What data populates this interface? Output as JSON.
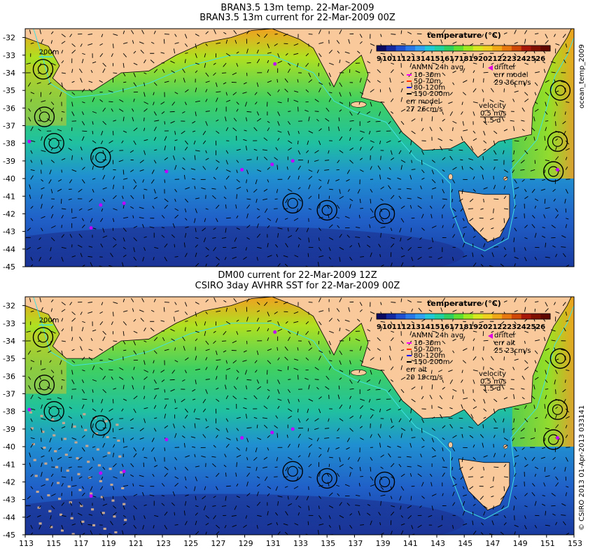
{
  "panels": [
    {
      "titles": [
        "BRAN3.5 13m temp. 22-Mar-2009",
        "BRAN3.5 13m current for 22-Mar-2009 00Z"
      ],
      "legend": {
        "title": "temperature (°C)",
        "ticks": [
          "9",
          "10",
          "11",
          "12",
          "13",
          "14",
          "15",
          "16",
          "17",
          "18",
          "19",
          "20",
          "21",
          "22",
          "23",
          "24",
          "25",
          "26"
        ],
        "anmn_title": "ANMN 24h avg",
        "depths": [
          {
            "label": "10-30m",
            "color": "#ff00ff"
          },
          {
            "label": "50-70m",
            "color": "#ff3300"
          },
          {
            "label": "80-120m",
            "color": "#0000ff"
          },
          {
            "label": "150-200m",
            "color": "#000000"
          }
        ],
        "err_label": "err model",
        "err_value": "27 26cm/s",
        "drifter_label": "drifter",
        "drifter_err_label": "err model",
        "drifter_err_value": "29 36cm/s",
        "velocity_label": "velocity",
        "velocity_scale": "0.5 m/s",
        "velocity_time": "1.5 d"
      },
      "isobath_label": "200m",
      "side_text": "ocean_temp_2009"
    },
    {
      "titles": [
        "DM00 current for 22-Mar-2009 12Z",
        "CSIRO 3day AVHRR SST for 22-Mar-2009 00Z"
      ],
      "legend": {
        "title": "temperature (°C)",
        "ticks": [
          "9",
          "10",
          "11",
          "12",
          "13",
          "14",
          "15",
          "16",
          "17",
          "18",
          "19",
          "20",
          "21",
          "22",
          "23",
          "24",
          "25",
          "26"
        ],
        "anmn_title": "ANMN 24h avg",
        "depths": [
          {
            "label": "10-30m",
            "color": "#ff00ff"
          },
          {
            "label": "50-70m",
            "color": "#ff3300"
          },
          {
            "label": "80-120m",
            "color": "#0000ff"
          },
          {
            "label": "150-200m",
            "color": "#000000"
          }
        ],
        "err_label": "err alt",
        "err_value": "20 19cm/s",
        "drifter_label": "drifter",
        "drifter_err_label": "err alt",
        "drifter_err_value": "25 23cm/s",
        "velocity_label": "velocity",
        "velocity_scale": "0.5 m/s",
        "velocity_time": "1.5 d"
      },
      "isobath_label": "200m",
      "side_text": "© CSIRO 2013   01-Apr-2013 033141"
    }
  ],
  "lat_ticks": [
    "-32",
    "-33",
    "-34",
    "-35",
    "-36",
    "-37",
    "-38",
    "-39",
    "-40",
    "-41",
    "-42",
    "-43",
    "-44",
    "-45"
  ],
  "lon_ticks": [
    "113",
    "115",
    "117",
    "119",
    "121",
    "123",
    "125",
    "127",
    "129",
    "131",
    "133",
    "135",
    "137",
    "139",
    "141",
    "143",
    "145",
    "147",
    "149",
    "151",
    "153"
  ],
  "colors": {
    "land": "#f9c89b",
    "cold": "#1a3fb0",
    "mid": "#30c090",
    "warm": "#f0b020",
    "isobath": "#40e0e0"
  }
}
